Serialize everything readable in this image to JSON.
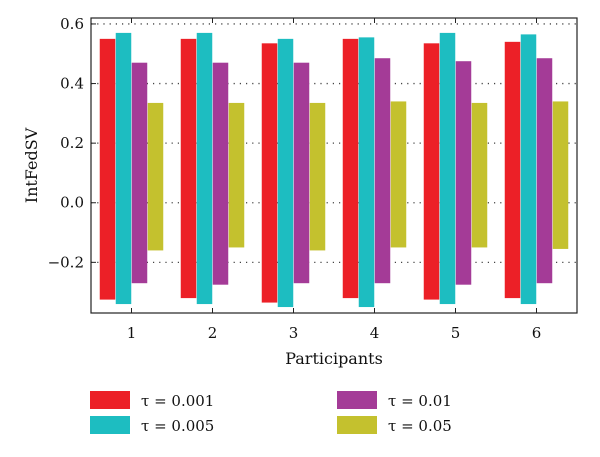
{
  "chart_data": {
    "type": "bar",
    "title": "",
    "xlabel": "Participants",
    "ylabel": "IntFedSV",
    "categories": [
      "1",
      "2",
      "3",
      "4",
      "5",
      "6"
    ],
    "ylim": [
      -0.37,
      0.62
    ],
    "yticks": [
      -0.2,
      0.0,
      0.2,
      0.4,
      0.6
    ],
    "ytick_labels": [
      "−0.2",
      "0.0",
      "0.2",
      "0.4",
      "0.6"
    ],
    "grid": true,
    "legend_position": "bottom",
    "series": [
      {
        "name": "τ = 0.001",
        "color": "#ec2027",
        "top": [
          0.55,
          0.55,
          0.535,
          0.55,
          0.535,
          0.54
        ],
        "bottom": [
          -0.325,
          -0.32,
          -0.335,
          -0.32,
          -0.325,
          -0.32
        ]
      },
      {
        "name": "τ = 0.005",
        "color": "#1dbdc1",
        "top": [
          0.57,
          0.57,
          0.55,
          0.555,
          0.57,
          0.565
        ],
        "bottom": [
          -0.34,
          -0.34,
          -0.35,
          -0.35,
          -0.34,
          -0.34
        ]
      },
      {
        "name": "τ = 0.01",
        "color": "#a43b97",
        "top": [
          0.47,
          0.47,
          0.47,
          0.485,
          0.475,
          0.485
        ],
        "bottom": [
          -0.27,
          -0.275,
          -0.27,
          -0.27,
          -0.275,
          -0.27
        ]
      },
      {
        "name": "τ = 0.05",
        "color": "#c4c12e",
        "top": [
          0.335,
          0.335,
          0.335,
          0.34,
          0.335,
          0.34
        ],
        "bottom": [
          -0.16,
          -0.15,
          -0.16,
          -0.15,
          -0.15,
          -0.155
        ]
      }
    ]
  }
}
